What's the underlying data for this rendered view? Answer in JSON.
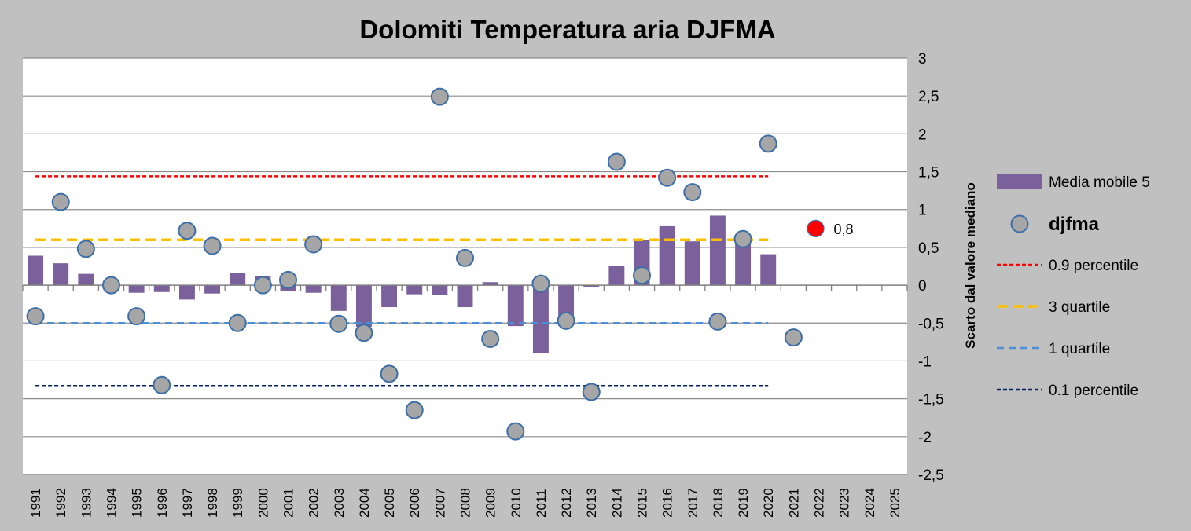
{
  "chart_data": {
    "type": "bar+scatter",
    "title": "Dolomiti Temperatura aria DJFMA",
    "ylabel": "Scarto dal valore mediano",
    "xlabel": "",
    "ylim": [
      -2.5,
      3
    ],
    "yticks": [
      3,
      2.5,
      2,
      1.5,
      1,
      0.5,
      0,
      -0.5,
      -1,
      -1.5,
      -2,
      -2.5
    ],
    "ytick_labels": [
      "3",
      "2,5",
      "2",
      "1,5",
      "1",
      "0,5",
      "0",
      "-0,5",
      "-1",
      "-1,5",
      "-2",
      "-2,5"
    ],
    "categories": [
      "1991",
      "1992",
      "1993",
      "1994",
      "1995",
      "1996",
      "1997",
      "1998",
      "1999",
      "2000",
      "2001",
      "2002",
      "2003",
      "2004",
      "2005",
      "2006",
      "2007",
      "2008",
      "2009",
      "2010",
      "2011",
      "2012",
      "2013",
      "2014",
      "2015",
      "2016",
      "2017",
      "2018",
      "2019",
      "2020",
      "2021",
      "2022",
      "2023",
      "2024",
      "2025"
    ],
    "series": [
      {
        "name": "Media mobile  5",
        "type": "bar",
        "color": "#7a619b",
        "values": [
          0.39,
          0.29,
          0.15,
          0.0,
          -0.1,
          -0.09,
          -0.19,
          -0.11,
          0.16,
          0.12,
          -0.08,
          -0.1,
          -0.34,
          -0.55,
          -0.29,
          -0.12,
          -0.13,
          -0.29,
          0.04,
          -0.54,
          -0.9,
          -0.47,
          -0.03,
          0.26,
          0.6,
          0.78,
          0.58,
          0.92,
          0.55,
          0.41,
          null,
          null,
          null,
          null,
          null
        ]
      },
      {
        "name": "djfma",
        "type": "scatter",
        "color": "#a6a6a6",
        "edge_color": "#3d6ea8",
        "values": [
          -0.41,
          1.1,
          0.48,
          0.0,
          -0.41,
          -1.32,
          0.72,
          0.52,
          -0.5,
          0.0,
          0.07,
          0.54,
          -0.51,
          -0.63,
          -1.17,
          -1.65,
          2.49,
          0.36,
          -0.71,
          -1.93,
          0.02,
          -0.47,
          -1.41,
          1.63,
          0.13,
          1.42,
          1.23,
          -0.48,
          0.61,
          1.87,
          -0.69,
          null,
          null,
          null,
          null
        ]
      }
    ],
    "reference_lines": [
      {
        "name": "0.9 percentile",
        "value": 1.44,
        "color": "#ff0000",
        "style": "dotted",
        "from": "1991",
        "to": "2020"
      },
      {
        "name": "3 quartile",
        "value": 0.6,
        "color": "#ffc000",
        "style": "dashed",
        "from": "1991",
        "to": "2020"
      },
      {
        "name": "1 quartile",
        "value": -0.5,
        "color": "#4a90d9",
        "style": "dashed",
        "from": "1991",
        "to": "2020"
      },
      {
        "name": "0.1 percentile",
        "value": -1.33,
        "color": "#002060",
        "style": "dotted",
        "from": "1991",
        "to": "2020"
      }
    ],
    "highlight_point": {
      "category": "2022",
      "value": 0.76,
      "label": "0,8",
      "color": "#ff0000"
    },
    "legend": {
      "placement": "right",
      "entries": [
        {
          "label": "Media mobile  5",
          "symbol": "bar"
        },
        {
          "label": "djfma",
          "symbol": "marker"
        },
        {
          "label": "0.9 percentile",
          "symbol": "line"
        },
        {
          "label": "3 quartile",
          "symbol": "line"
        },
        {
          "label": "1 quartile",
          "symbol": "line"
        },
        {
          "label": "0.1 percentile",
          "symbol": "line"
        }
      ]
    },
    "grid": true
  }
}
